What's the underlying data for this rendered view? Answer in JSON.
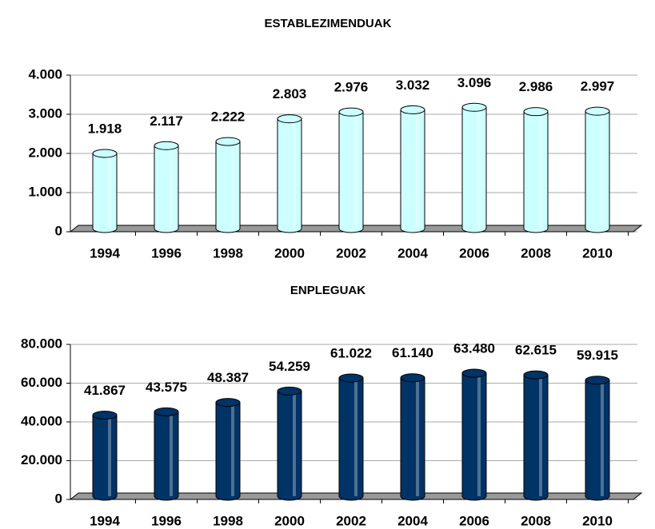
{
  "chart_data": [
    {
      "type": "bar",
      "title": "ESTABLEZIMENDUAK",
      "categories": [
        "1994",
        "1996",
        "1998",
        "2000",
        "2002",
        "2004",
        "2006",
        "2008",
        "2010"
      ],
      "values": [
        1918,
        2117,
        2222,
        2803,
        2976,
        3032,
        3096,
        2986,
        2997
      ],
      "value_labels": [
        "1.918",
        "2.117",
        "2.222",
        "2.803",
        "2.976",
        "3.032",
        "3.096",
        "2.986",
        "2.997"
      ],
      "color": "#ccffff",
      "ylim": [
        0,
        4000
      ],
      "yticks": [
        0,
        {
          "value": 1000,
          "label": "1.000"
        },
        {
          "value": 2000,
          "label": "2.000"
        },
        {
          "value": 3000,
          "label": "3.000"
        },
        {
          "value": 4000,
          "label": "4.000"
        }
      ],
      "grid": true
    },
    {
      "type": "bar",
      "title": "ENPLEGUAK",
      "categories": [
        "1994",
        "1996",
        "1998",
        "2000",
        "2002",
        "2004",
        "2006",
        "2008",
        "2010"
      ],
      "values": [
        41867,
        43575,
        48387,
        54259,
        61022,
        61140,
        63480,
        62615,
        59915
      ],
      "value_labels": [
        "41.867",
        "43.575",
        "48.387",
        "54.259",
        "61.022",
        "61.140",
        "63.480",
        "62.615",
        "59.915"
      ],
      "color": "#003366",
      "ylim": [
        0,
        80000
      ],
      "yticks": [
        0,
        {
          "value": 20000,
          "label": "20.000"
        },
        {
          "value": 40000,
          "label": "40.000"
        },
        {
          "value": 60000,
          "label": "60.000"
        },
        {
          "value": 80000,
          "label": "80.000"
        }
      ],
      "grid": true
    }
  ]
}
